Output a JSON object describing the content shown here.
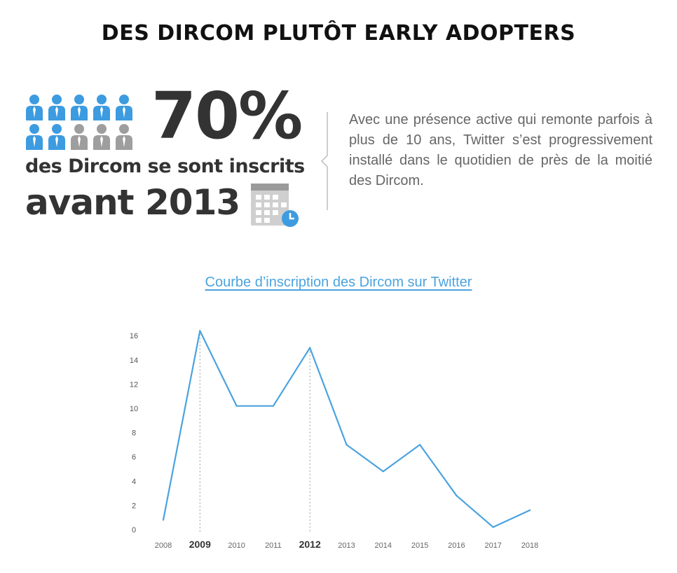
{
  "header": {
    "title": "DES DIRCOM PLUTÔT EARLY ADOPTERS"
  },
  "stat": {
    "percent": "70%",
    "people_icons": {
      "total": 10,
      "highlighted": 7
    },
    "subline": "des Dircom se sont inscrits",
    "avant_prefix": "avant",
    "year": "2013",
    "icon_names": [
      "person-icon",
      "calendar-clock-icon"
    ]
  },
  "description": "Avec une présence active qui remonte parfois à plus de 10 ans, Twitter s’est progressivement installé dans le quotidien de près de la moitié des Dircom.",
  "colors": {
    "accent": "#4aa3df",
    "highlight_person": "#3d9be0",
    "muted_person": "#9e9e9e",
    "text_dark": "#333333",
    "text_muted": "#666666"
  },
  "chart_data": {
    "type": "line",
    "title": "Courbe d’inscription des Dircom sur Twitter",
    "x": [
      "2008",
      "2009",
      "2010",
      "2011",
      "2012",
      "2013",
      "2014",
      "2015",
      "2016",
      "2017",
      "2018"
    ],
    "values": [
      0.8,
      16.4,
      10.2,
      10.2,
      15.0,
      7.0,
      4.8,
      7.0,
      2.8,
      0.2,
      1.6
    ],
    "emphasized_x": [
      "2009",
      "2012"
    ],
    "y_ticks": [
      "0",
      "2",
      "4",
      "6",
      "8",
      "10",
      "12",
      "14",
      "16"
    ],
    "ylim": [
      0,
      16
    ],
    "xlabel": "",
    "ylabel": "",
    "grid": false,
    "line_color": "#4aa3df"
  }
}
